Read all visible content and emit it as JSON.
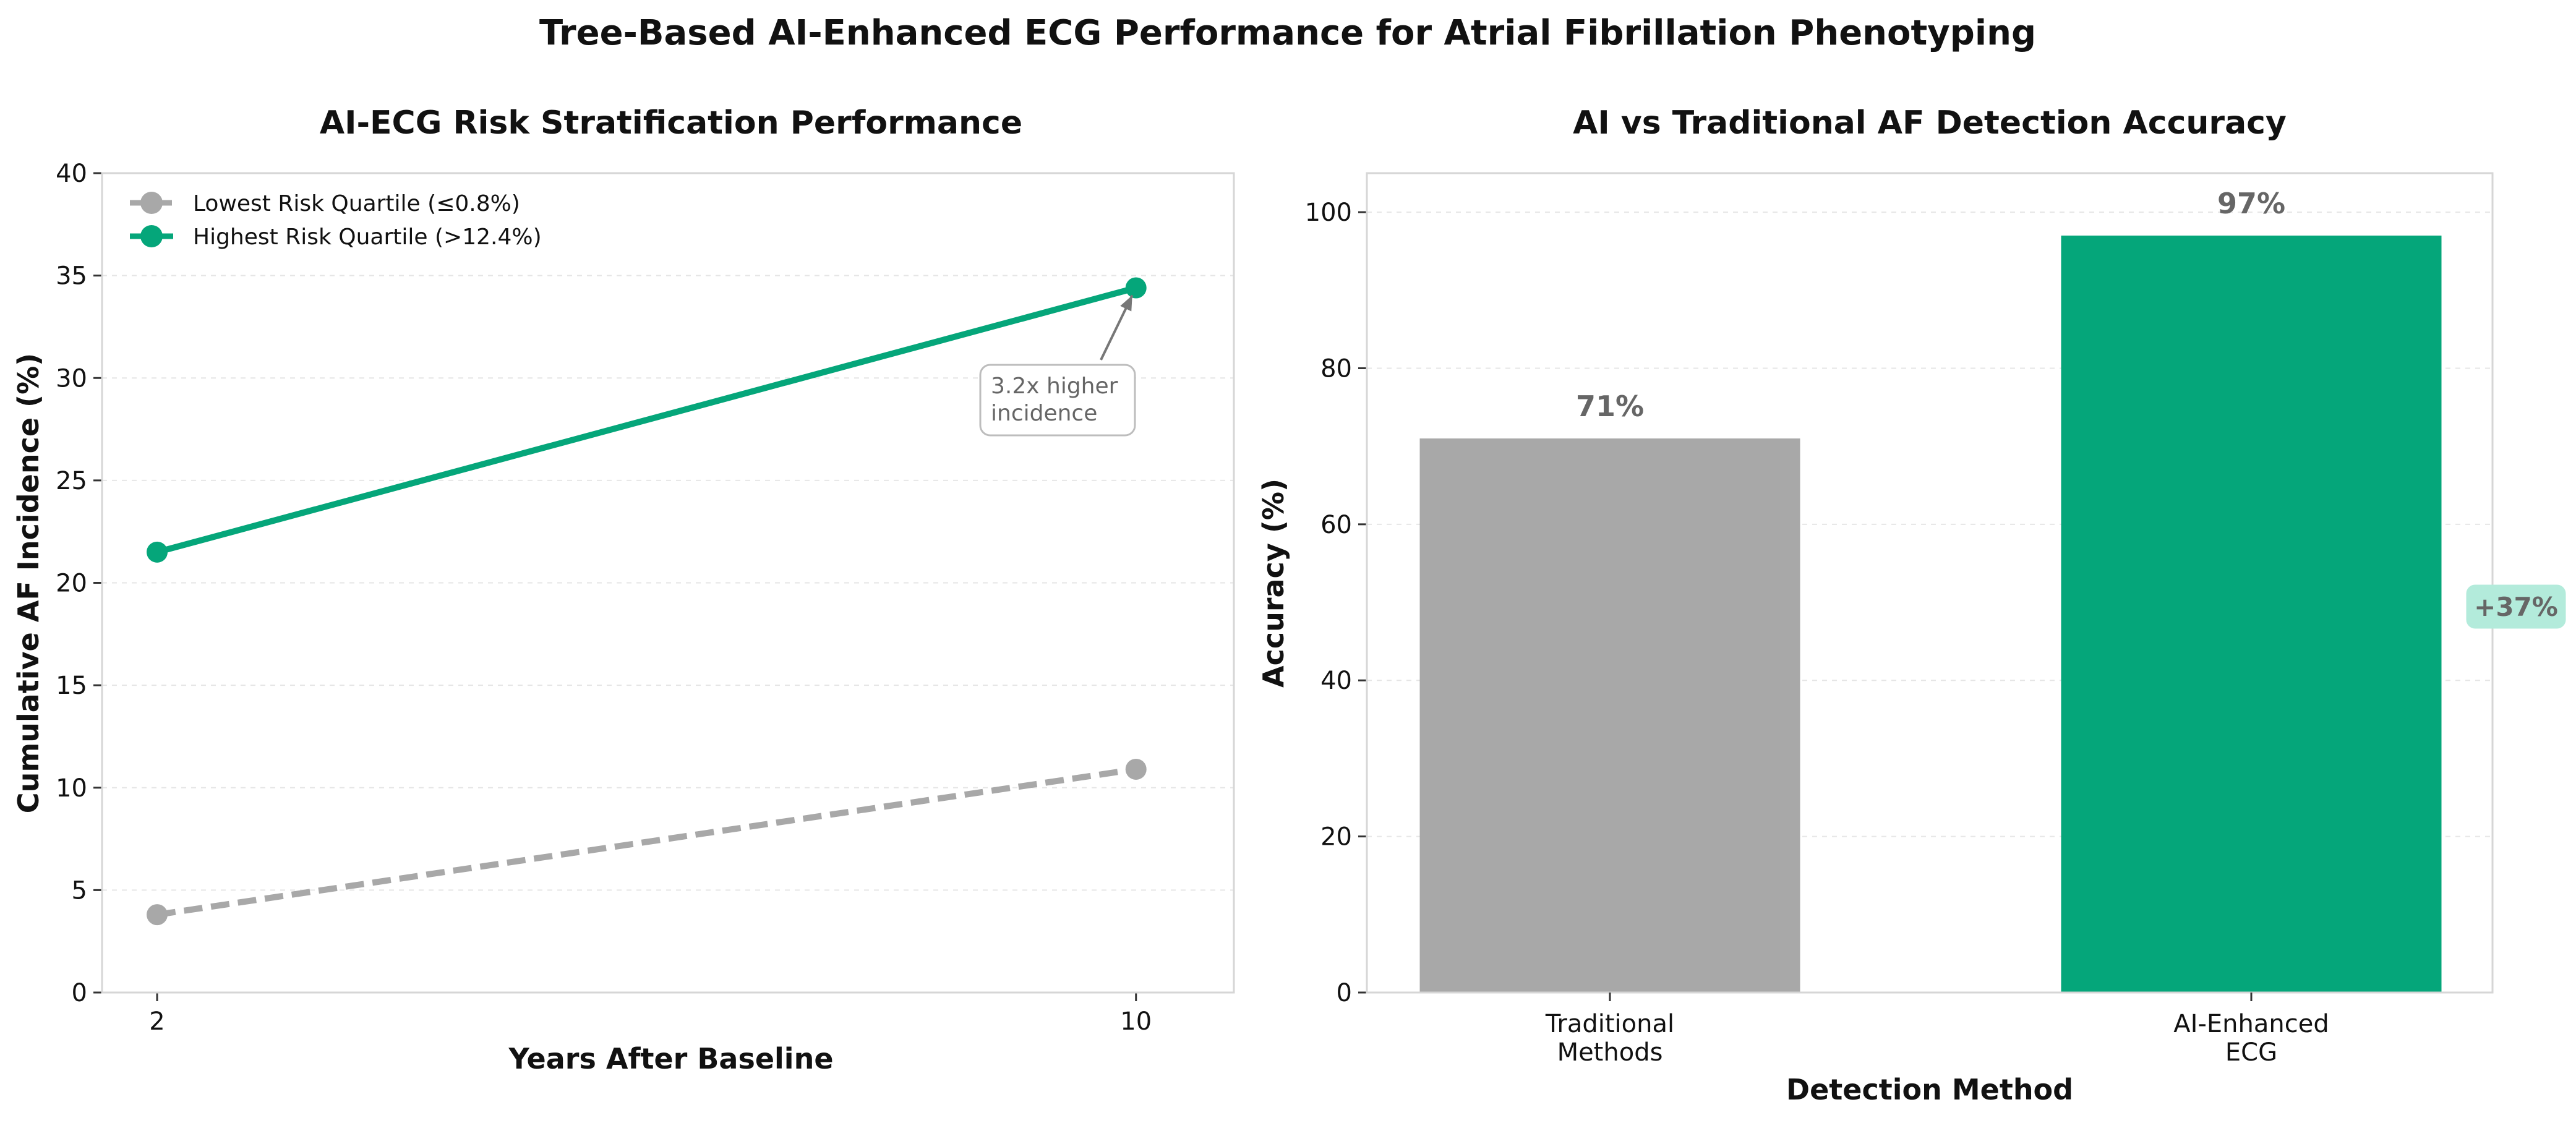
{
  "suptitle": "Tree-Based AI-Enhanced ECG Performance for Atrial Fibrillation Phenotyping",
  "colors": {
    "accent": "#05A67A",
    "neutral": "#A8A8A8",
    "annot_bg": "#B3EBDB"
  },
  "chart_data": [
    {
      "type": "line",
      "title": "AI-ECG Risk Stratification Performance",
      "xlabel": "Years After Baseline",
      "ylabel": "Cumulative AF Incidence (%)",
      "x": [
        2,
        10
      ],
      "xticks": [
        "2",
        "10"
      ],
      "ylim": [
        0,
        40
      ],
      "yticks": [
        "0",
        "5",
        "10",
        "15",
        "20",
        "25",
        "30",
        "35",
        "40"
      ],
      "grid": true,
      "legend_position": "top-left",
      "series": [
        {
          "name": "Lowest Risk Quartile (≤0.8%)",
          "values": [
            3.8,
            10.9
          ],
          "style": "dashed"
        },
        {
          "name": "Highest Risk Quartile (>12.4%)",
          "values": [
            21.5,
            34.4
          ],
          "style": "solid"
        }
      ],
      "annotation": {
        "line1": "3.2x higher",
        "line2": "incidence",
        "target_x": 10,
        "target_y": 34.4
      }
    },
    {
      "type": "bar",
      "title": "AI vs Traditional AF Detection Accuracy",
      "xlabel": "Detection Method",
      "ylabel": "Accuracy (%)",
      "categories": [
        {
          "line1": "Traditional",
          "line2": "Methods"
        },
        {
          "line1": "AI-Enhanced",
          "line2": "ECG"
        }
      ],
      "values": [
        71,
        97
      ],
      "value_labels": [
        "71%",
        "97%"
      ],
      "ylim": [
        0,
        105
      ],
      "yticks": [
        "0",
        "20",
        "40",
        "60",
        "80",
        "100"
      ],
      "grid": true,
      "improvement_label": "+37%"
    }
  ]
}
